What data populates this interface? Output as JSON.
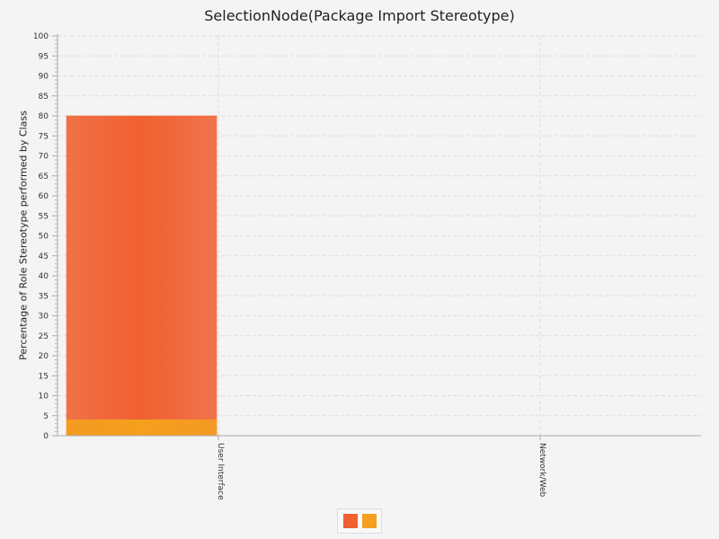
{
  "chart_data": {
    "type": "bar",
    "title": "SelectionNode(Package Import Stereotype)",
    "xlabel": "",
    "ylabel": "Percentage of Role Stereotype performed by Class",
    "categories": [
      "User Interface",
      "Network/Web"
    ],
    "series": [
      {
        "color": "#f06030",
        "values": [
          80,
          0
        ]
      },
      {
        "color": "#f5a01e",
        "values": [
          4,
          0
        ]
      }
    ],
    "ylim": [
      0,
      100
    ],
    "y_tick_step": 5,
    "grid": true,
    "legend": "bottom-center"
  }
}
